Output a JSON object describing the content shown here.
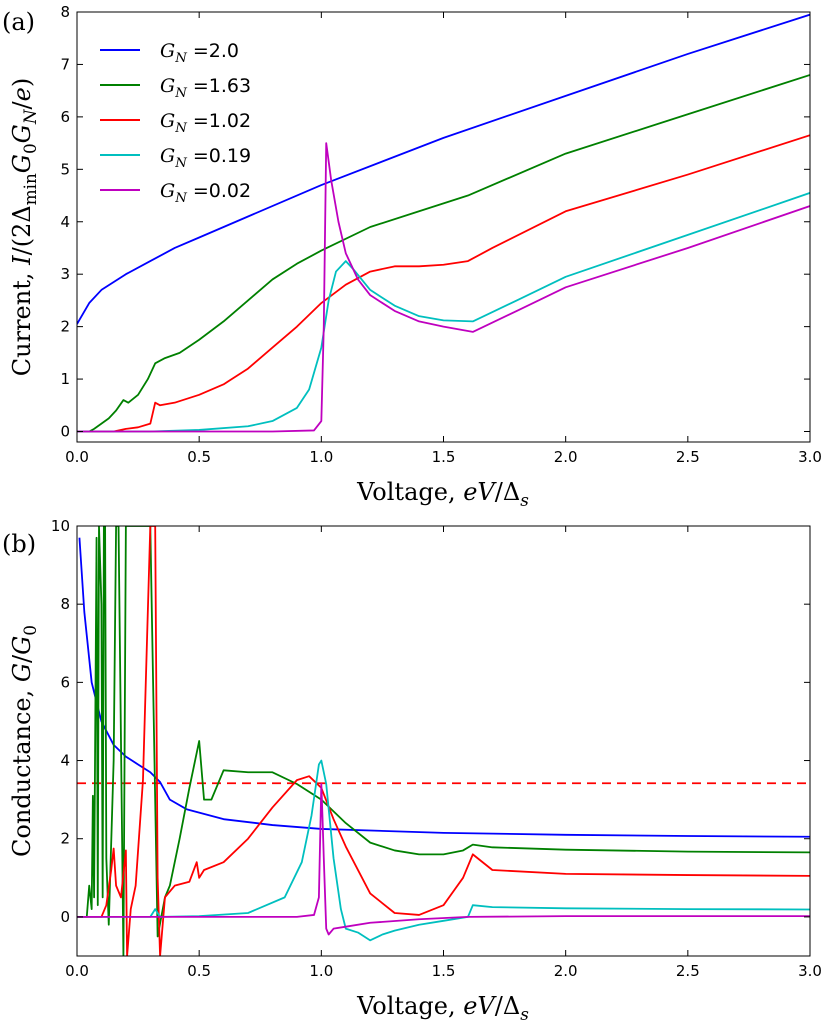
{
  "chart_data": [
    {
      "type": "line",
      "panel_label": "(a)",
      "xlabel": "Voltage, eV/Δs",
      "ylabel": "Current, I/(2ΔminG0GN/e)",
      "xlim": [
        0,
        3
      ],
      "ylim": [
        -0.2,
        8
      ],
      "xticks": [
        "0.0",
        "0.5",
        "1.0",
        "1.5",
        "2.0",
        "2.5",
        "3.0"
      ],
      "yticks": [
        "0",
        "1",
        "2",
        "3",
        "4",
        "5",
        "6",
        "7",
        "8"
      ],
      "grid": false,
      "legend": "top-left",
      "series": [
        {
          "name": "GN =2.0",
          "color": "#0000ff",
          "x": [
            0,
            0.05,
            0.1,
            0.2,
            0.3,
            0.4,
            0.5,
            0.7,
            1.0,
            1.5,
            2.0,
            2.5,
            3.0
          ],
          "y": [
            2.05,
            2.45,
            2.7,
            3.0,
            3.25,
            3.5,
            3.7,
            4.1,
            4.7,
            5.6,
            6.4,
            7.2,
            7.95
          ]
        },
        {
          "name": "GN =1.63",
          "color": "#008000",
          "x": [
            0,
            0.05,
            0.07,
            0.1,
            0.13,
            0.16,
            0.19,
            0.21,
            0.25,
            0.29,
            0.32,
            0.36,
            0.42,
            0.5,
            0.6,
            0.7,
            0.8,
            0.9,
            1.0,
            1.2,
            1.4,
            1.6,
            2.0,
            2.5,
            3.0
          ],
          "y": [
            0,
            0,
            0.05,
            0.15,
            0.25,
            0.4,
            0.6,
            0.55,
            0.7,
            1.0,
            1.3,
            1.4,
            1.5,
            1.75,
            2.1,
            2.5,
            2.9,
            3.2,
            3.45,
            3.9,
            4.2,
            4.5,
            5.3,
            6.05,
            6.8
          ]
        },
        {
          "name": "GN =1.02",
          "color": "#ff0000",
          "x": [
            0,
            0.15,
            0.2,
            0.25,
            0.3,
            0.32,
            0.34,
            0.4,
            0.5,
            0.6,
            0.7,
            0.8,
            0.9,
            1.0,
            1.1,
            1.2,
            1.3,
            1.4,
            1.5,
            1.6,
            1.7,
            2.0,
            2.5,
            3.0
          ],
          "y": [
            0,
            0,
            0.05,
            0.08,
            0.15,
            0.55,
            0.5,
            0.55,
            0.7,
            0.9,
            1.2,
            1.6,
            2.0,
            2.45,
            2.8,
            3.05,
            3.15,
            3.15,
            3.18,
            3.25,
            3.5,
            4.2,
            4.9,
            5.65
          ]
        },
        {
          "name": "GN =0.19",
          "color": "#00bfbf",
          "x": [
            0,
            0.3,
            0.5,
            0.7,
            0.8,
            0.9,
            0.95,
            1.0,
            1.03,
            1.06,
            1.1,
            1.13,
            1.2,
            1.3,
            1.4,
            1.5,
            1.62,
            1.8,
            2.0,
            2.5,
            3.0
          ],
          "y": [
            0,
            0,
            0.03,
            0.1,
            0.2,
            0.45,
            0.8,
            1.6,
            2.5,
            3.05,
            3.25,
            3.1,
            2.7,
            2.4,
            2.2,
            2.12,
            2.1,
            2.5,
            2.95,
            3.75,
            4.55
          ]
        },
        {
          "name": "GN =0.02",
          "color": "#bf00bf",
          "x": [
            0,
            0.8,
            0.97,
            1.0,
            1.01,
            1.02,
            1.04,
            1.07,
            1.1,
            1.15,
            1.2,
            1.3,
            1.4,
            1.5,
            1.62,
            1.8,
            2.0,
            2.5,
            3.0
          ],
          "y": [
            0,
            0,
            0.02,
            0.2,
            2.0,
            5.5,
            4.8,
            4.0,
            3.4,
            2.9,
            2.6,
            2.3,
            2.1,
            2.0,
            1.9,
            2.3,
            2.75,
            3.5,
            4.3
          ]
        }
      ]
    },
    {
      "type": "line",
      "panel_label": "(b)",
      "xlabel": "Voltage, eV/Δs",
      "ylabel": "Conductance, G/G0",
      "xlim": [
        0,
        3
      ],
      "ylim": [
        -1,
        10
      ],
      "xticks": [
        "0.0",
        "0.5",
        "1.0",
        "1.5",
        "2.0",
        "2.5",
        "3.0"
      ],
      "yticks": [
        "0",
        "2",
        "4",
        "6",
        "8",
        "10"
      ],
      "grid": false,
      "reference_line": {
        "y": 3.42,
        "color": "#ff0000",
        "style": "dashed"
      },
      "series": [
        {
          "name": "GN =2.0",
          "color": "#0000ff",
          "x": [
            0.01,
            0.03,
            0.06,
            0.1,
            0.15,
            0.2,
            0.25,
            0.3,
            0.34,
            0.38,
            0.45,
            0.6,
            0.8,
            1.0,
            1.5,
            2.0,
            2.5,
            3.0
          ],
          "y": [
            9.7,
            7.8,
            6.0,
            5.0,
            4.4,
            4.1,
            3.9,
            3.7,
            3.45,
            3.0,
            2.75,
            2.5,
            2.35,
            2.25,
            2.15,
            2.1,
            2.07,
            2.05
          ]
        },
        {
          "name": "GN =1.63",
          "color": "#008000",
          "x": [
            0,
            0.04,
            0.05,
            0.06,
            0.065,
            0.07,
            0.08,
            0.085,
            0.09,
            0.1,
            0.105,
            0.11,
            0.115,
            0.12,
            0.13,
            0.15,
            0.16,
            0.17,
            0.19,
            0.2,
            0.22,
            0.25,
            0.3,
            0.33,
            0.36,
            0.38,
            0.42,
            0.46,
            0.5,
            0.52,
            0.55,
            0.6,
            0.7,
            0.8,
            0.9,
            1.0,
            1.1,
            1.2,
            1.3,
            1.4,
            1.5,
            1.58,
            1.62,
            1.7,
            2.0,
            2.5,
            3.0
          ],
          "y": [
            0,
            0,
            0.8,
            0.2,
            3.1,
            0.5,
            9.7,
            0.3,
            10,
            8,
            0.5,
            10,
            10,
            1.5,
            -0.2,
            4,
            10,
            10,
            -1,
            10,
            10,
            10,
            10,
            -0.5,
            0.5,
            0.8,
            2.0,
            3.3,
            4.5,
            3.0,
            3.0,
            3.75,
            3.7,
            3.7,
            3.4,
            3.0,
            2.4,
            1.9,
            1.7,
            1.6,
            1.6,
            1.7,
            1.85,
            1.78,
            1.72,
            1.67,
            1.65
          ]
        },
        {
          "name": "GN =1.02",
          "color": "#ff0000",
          "x": [
            0,
            0.1,
            0.12,
            0.14,
            0.15,
            0.16,
            0.18,
            0.2,
            0.205,
            0.22,
            0.24,
            0.27,
            0.3,
            0.31,
            0.32,
            0.33,
            0.34,
            0.36,
            0.4,
            0.46,
            0.49,
            0.5,
            0.52,
            0.6,
            0.7,
            0.8,
            0.9,
            0.95,
            1.0,
            1.05,
            1.1,
            1.2,
            1.3,
            1.4,
            1.5,
            1.58,
            1.62,
            1.7,
            2.0,
            2.5,
            3.0
          ],
          "y": [
            0,
            0,
            0.3,
            1.2,
            1.75,
            0.8,
            0.5,
            1.7,
            -1,
            0.2,
            0.8,
            3.5,
            10,
            10,
            10,
            1.0,
            -1,
            0.5,
            0.8,
            0.9,
            1.4,
            1.0,
            1.2,
            1.4,
            2.0,
            2.8,
            3.5,
            3.6,
            3.3,
            2.5,
            1.8,
            0.6,
            0.1,
            0.05,
            0.3,
            1.0,
            1.6,
            1.2,
            1.1,
            1.07,
            1.05
          ]
        },
        {
          "name": "GN =0.19",
          "color": "#00bfbf",
          "x": [
            0,
            0.3,
            0.32,
            0.34,
            0.5,
            0.7,
            0.85,
            0.92,
            0.96,
            0.99,
            1.0,
            1.02,
            1.05,
            1.08,
            1.1,
            1.15,
            1.2,
            1.25,
            1.3,
            1.4,
            1.5,
            1.6,
            1.61,
            1.62,
            1.7,
            2.0,
            2.5,
            3.0
          ],
          "y": [
            0,
            0,
            0.2,
            0,
            0.02,
            0.1,
            0.5,
            1.4,
            2.6,
            3.9,
            4.0,
            3.4,
            1.5,
            0.2,
            -0.3,
            -0.4,
            -0.6,
            -0.45,
            -0.35,
            -0.2,
            -0.1,
            0,
            0.15,
            0.3,
            0.25,
            0.22,
            0.2,
            0.19
          ]
        },
        {
          "name": "GN =0.02",
          "color": "#bf00bf",
          "x": [
            0,
            0.9,
            0.97,
            0.99,
            1.0,
            1.005,
            1.01,
            1.02,
            1.03,
            1.05,
            1.1,
            1.2,
            1.4,
            1.6,
            2.0,
            2.5,
            3.0
          ],
          "y": [
            0,
            0,
            0.05,
            0.5,
            3.4,
            2.5,
            1.5,
            -0.3,
            -0.45,
            -0.3,
            -0.25,
            -0.15,
            -0.06,
            0,
            0.02,
            0.02,
            0.02
          ]
        }
      ]
    }
  ]
}
